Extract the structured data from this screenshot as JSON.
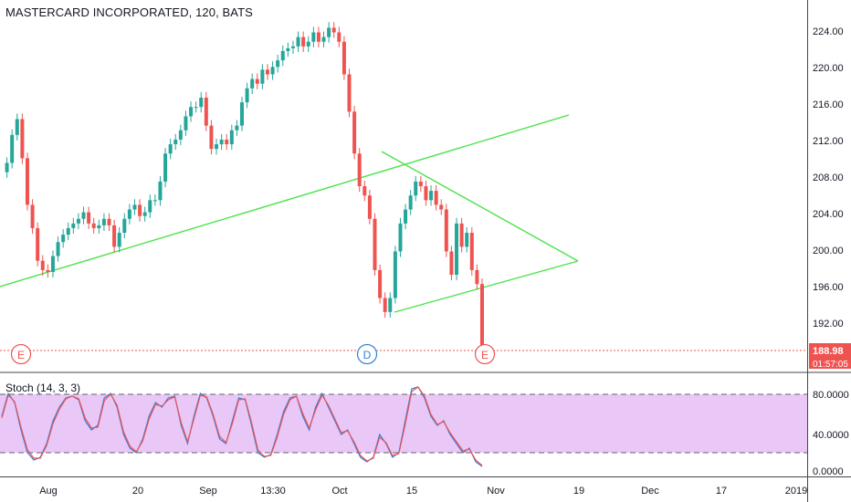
{
  "header": {
    "title": "MASTERCARD INCORPORATED, 120, BATS"
  },
  "indicator": {
    "label": "Stoch (14, 3, 3)"
  },
  "price_axis": {
    "ticks": [
      "224.00",
      "220.00",
      "216.00",
      "212.00",
      "208.00",
      "204.00",
      "200.00",
      "196.00",
      "192.00"
    ]
  },
  "stoch_axis": {
    "ticks": [
      "80.0000",
      "40.0000",
      "0.0000"
    ]
  },
  "time_axis": {
    "labels": [
      "Aug",
      "20",
      "Sep",
      "13:30",
      "Oct",
      "15",
      "Nov",
      "19",
      "Dec",
      "17",
      "2019"
    ]
  },
  "last_price": {
    "value": "188.98",
    "countdown": "01:57:05"
  },
  "events": [
    {
      "letter": "E"
    },
    {
      "letter": "D"
    },
    {
      "letter": "E"
    }
  ],
  "colors": {
    "up": "#26a69a",
    "down": "#ef5350",
    "trendline": "#4be34b",
    "stoch_fill": "#e9c7f7",
    "k_line": "#2f80d7",
    "d_line": "#ef5350"
  },
  "chart_data": [
    {
      "type": "candlestick",
      "title": "MASTERCARD INCORPORATED, 120, BATS",
      "ylim": [
        188,
        226
      ],
      "x_tick_labels": [
        "Aug",
        "20",
        "Sep",
        "13:30",
        "Oct",
        "15",
        "Nov",
        "19",
        "Dec",
        "17",
        "2019"
      ],
      "y_tick_labels": [
        "224.00",
        "220.00",
        "216.00",
        "212.00",
        "208.00",
        "204.00",
        "200.00",
        "196.00",
        "192.00"
      ],
      "close_path": [
        [
          0,
          208.5
        ],
        [
          1,
          209.5
        ],
        [
          2,
          212.5
        ],
        [
          3,
          214.2
        ],
        [
          4,
          210
        ],
        [
          5,
          205
        ],
        [
          6,
          202.5
        ],
        [
          7,
          199
        ],
        [
          8,
          198
        ],
        [
          9,
          197.8
        ],
        [
          10,
          199.5
        ],
        [
          11,
          201
        ],
        [
          12,
          201.8
        ],
        [
          13,
          202.5
        ],
        [
          14,
          203
        ],
        [
          15,
          203.5
        ],
        [
          16,
          204.2
        ],
        [
          17,
          203
        ],
        [
          18,
          202.5
        ],
        [
          19,
          202.8
        ],
        [
          20,
          203.5
        ],
        [
          21,
          202.8
        ],
        [
          22,
          200.5
        ],
        [
          23,
          202
        ],
        [
          24,
          203.5
        ],
        [
          25,
          204.5
        ],
        [
          26,
          205
        ],
        [
          27,
          203.8
        ],
        [
          28,
          204.2
        ],
        [
          29,
          205.5
        ],
        [
          30,
          205.5
        ],
        [
          31,
          207.5
        ],
        [
          32,
          210.5
        ],
        [
          33,
          211.5
        ],
        [
          34,
          212
        ],
        [
          35,
          213
        ],
        [
          36,
          214.5
        ],
        [
          37,
          215.5
        ],
        [
          38,
          215.5
        ],
        [
          39,
          216.5
        ],
        [
          40,
          213.5
        ],
        [
          41,
          211
        ],
        [
          42,
          211.5
        ],
        [
          43,
          212
        ],
        [
          44,
          211.5
        ],
        [
          45,
          213
        ],
        [
          46,
          213.5
        ],
        [
          47,
          216
        ],
        [
          48,
          217.5
        ],
        [
          49,
          218.5
        ],
        [
          50,
          218
        ],
        [
          51,
          219.5
        ],
        [
          52,
          219
        ],
        [
          53,
          219.8
        ],
        [
          54,
          220.5
        ],
        [
          55,
          221.5
        ],
        [
          56,
          221.8
        ],
        [
          57,
          222
        ],
        [
          58,
          223
        ],
        [
          59,
          222
        ],
        [
          60,
          222.5
        ],
        [
          61,
          223.5
        ],
        [
          62,
          222.5
        ],
        [
          63,
          223
        ],
        [
          64,
          224
        ],
        [
          65,
          223.5
        ],
        [
          66,
          222.5
        ],
        [
          67,
          219
        ],
        [
          68,
          215
        ],
        [
          69,
          210.5
        ],
        [
          70,
          207
        ],
        [
          71,
          206
        ],
        [
          72,
          203.5
        ],
        [
          73,
          198
        ],
        [
          74,
          195
        ],
        [
          75,
          193.5
        ],
        [
          76,
          195
        ],
        [
          77,
          200
        ],
        [
          78,
          203
        ],
        [
          79,
          204.5
        ],
        [
          80,
          206
        ],
        [
          81,
          207.5
        ],
        [
          82,
          207
        ],
        [
          83,
          205.5
        ],
        [
          84,
          206.5
        ],
        [
          85,
          205
        ],
        [
          86,
          204.5
        ],
        [
          87,
          200
        ],
        [
          88,
          197.5
        ],
        [
          89,
          203
        ],
        [
          90,
          200.5
        ],
        [
          91,
          202
        ],
        [
          92,
          198
        ],
        [
          93,
          196.5
        ],
        [
          94,
          189
        ]
      ],
      "last_value": 188.98
    },
    {
      "type": "line",
      "title": "Stoch (14, 3, 3)",
      "ylim": [
        0,
        100
      ],
      "y_tick_labels": [
        "80.0000",
        "40.0000",
        "0.0000"
      ],
      "bands": [
        20,
        80
      ],
      "series": [
        {
          "values": [
            60,
            85,
            75,
            45,
            20,
            12,
            15,
            30,
            55,
            70,
            80,
            82,
            78,
            55,
            45,
            50,
            80,
            85,
            70,
            40,
            25,
            20,
            35,
            60,
            75,
            70,
            80,
            82,
            50,
            30,
            60,
            85,
            80,
            60,
            35,
            30,
            55,
            80,
            78,
            50,
            20,
            15,
            18,
            40,
            65,
            80,
            82,
            60,
            45,
            70,
            85,
            70,
            55,
            40,
            45,
            30,
            15,
            10,
            15,
            40,
            30,
            15,
            20,
            55,
            90,
            92,
            80,
            60,
            50,
            55,
            40,
            30,
            20,
            25,
            10,
            5
          ]
        },
        {
          "values": [
            58,
            83,
            76,
            48,
            23,
            14,
            14,
            28,
            52,
            68,
            79,
            82,
            79,
            58,
            47,
            48,
            77,
            84,
            72,
            43,
            27,
            21,
            33,
            57,
            73,
            71,
            78,
            81,
            53,
            32,
            57,
            83,
            81,
            62,
            38,
            31,
            52,
            78,
            79,
            53,
            23,
            16,
            17,
            37,
            62,
            78,
            82,
            63,
            47,
            67,
            83,
            72,
            57,
            42,
            44,
            32,
            17,
            11,
            14,
            37,
            31,
            17,
            19,
            51,
            87,
            92,
            82,
            62,
            51,
            54,
            42,
            32,
            22,
            24,
            12,
            6
          ]
        }
      ]
    }
  ]
}
